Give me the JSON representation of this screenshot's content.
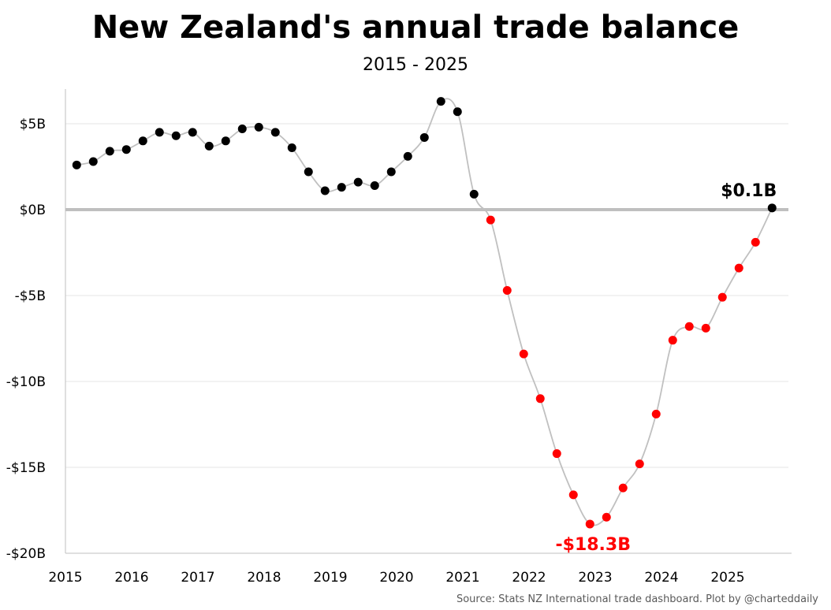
{
  "chart_data": {
    "type": "line",
    "title": "New Zealand's annual trade balance",
    "subtitle": "2015 - 2025",
    "source": "Source: Stats NZ International trade dashboard.  Plot by @charteddaily",
    "xlim": [
      2015,
      2025.917
    ],
    "ylim": [
      -20,
      7
    ],
    "x_ticks": [
      2015,
      2016,
      2017,
      2018,
      2019,
      2020,
      2021,
      2022,
      2023,
      2024,
      2025
    ],
    "y_ticks": [
      5,
      0,
      -5,
      -10,
      -15,
      -20
    ],
    "y_tick_labels": [
      "$5B",
      "$0B",
      "-$5B",
      "-$10B",
      "-$15B",
      "-$20B"
    ],
    "grid": "horizontal",
    "colors": {
      "positive": "#000000",
      "negative": "#ff0000",
      "line": "#c0c0c0",
      "zero_line": "#bfbfbf",
      "grid": "#e6e6e6"
    },
    "series": [
      {
        "x": [
          2015.17,
          2015.42,
          2015.67,
          2015.92,
          2016.17,
          2016.42,
          2016.67,
          2016.92,
          2017.17,
          2017.42,
          2017.67,
          2017.92,
          2018.17,
          2018.42,
          2018.67,
          2018.92,
          2019.17,
          2019.42,
          2019.67,
          2019.92,
          2020.17,
          2020.42,
          2020.67,
          2020.92,
          2021.17,
          2021.42,
          2021.67,
          2021.92,
          2022.17,
          2022.42,
          2022.67,
          2022.92,
          2023.17,
          2023.42,
          2023.67,
          2023.92,
          2024.17,
          2024.42,
          2024.67,
          2024.92,
          2025.17,
          2025.42,
          2025.67
        ],
        "values": [
          2.6,
          2.8,
          3.4,
          3.5,
          4.0,
          4.5,
          4.3,
          4.5,
          3.7,
          4.0,
          4.7,
          4.8,
          4.5,
          3.6,
          2.2,
          1.1,
          1.3,
          1.6,
          1.4,
          2.2,
          3.1,
          4.2,
          6.3,
          5.7,
          0.9,
          -0.6,
          -4.7,
          -8.4,
          -11.0,
          -14.2,
          -16.6,
          -18.3,
          -17.9,
          -16.2,
          -14.8,
          -11.9,
          -7.6,
          -6.8,
          -6.9,
          -5.1,
          -3.4,
          -1.9,
          0.1
        ]
      }
    ],
    "annotations": [
      {
        "text": "$0.1B",
        "x": 2025.67,
        "y": 0.1,
        "color": "#000000"
      },
      {
        "text": "-$18.3B",
        "x": 2022.92,
        "y": -18.3,
        "color": "#ff0000"
      }
    ]
  }
}
